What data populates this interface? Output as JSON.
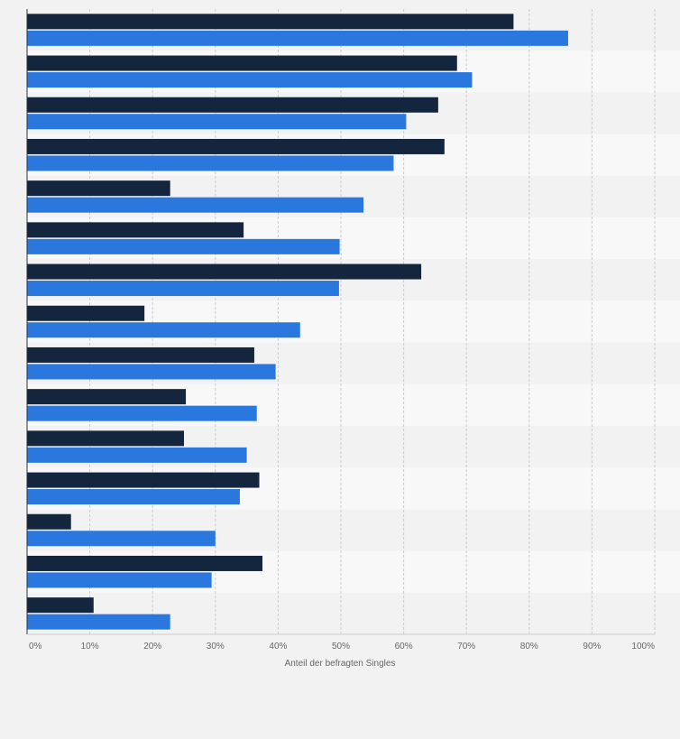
{
  "chart_data": {
    "type": "bar",
    "orientation": "horizontal",
    "categories": [
      "",
      "",
      "",
      "",
      "",
      "",
      "",
      "",
      "",
      "",
      "",
      "",
      "",
      "",
      ""
    ],
    "series": [
      {
        "color": "#13263d",
        "values": [
          77.5,
          68.5,
          65.5,
          66.5,
          22.8,
          34.5,
          62.8,
          18.7,
          36.2,
          25.3,
          25.0,
          37.0,
          7.0,
          37.5,
          10.6
        ]
      },
      {
        "color": "#2a78de",
        "values": [
          86.2,
          70.9,
          60.4,
          58.4,
          53.6,
          49.8,
          49.7,
          43.5,
          39.6,
          36.6,
          35.0,
          33.9,
          30.0,
          29.4,
          22.8
        ]
      }
    ],
    "xlim": [
      0,
      100
    ],
    "xticks": [
      "0%",
      "10%",
      "20%",
      "30%",
      "40%",
      "50%",
      "60%",
      "70%",
      "80%",
      "90%",
      "100%"
    ],
    "xlabel": "Anteil der befragten Singles",
    "ylabel": "",
    "title": "",
    "grid": true,
    "legend": "none"
  },
  "colors": {
    "background": "#f2f2f2",
    "band_light": "#f8f8f8",
    "band_dark": "#f2f2f2",
    "grid": "#cccccc",
    "axis": "#333333",
    "text": "#666666"
  }
}
